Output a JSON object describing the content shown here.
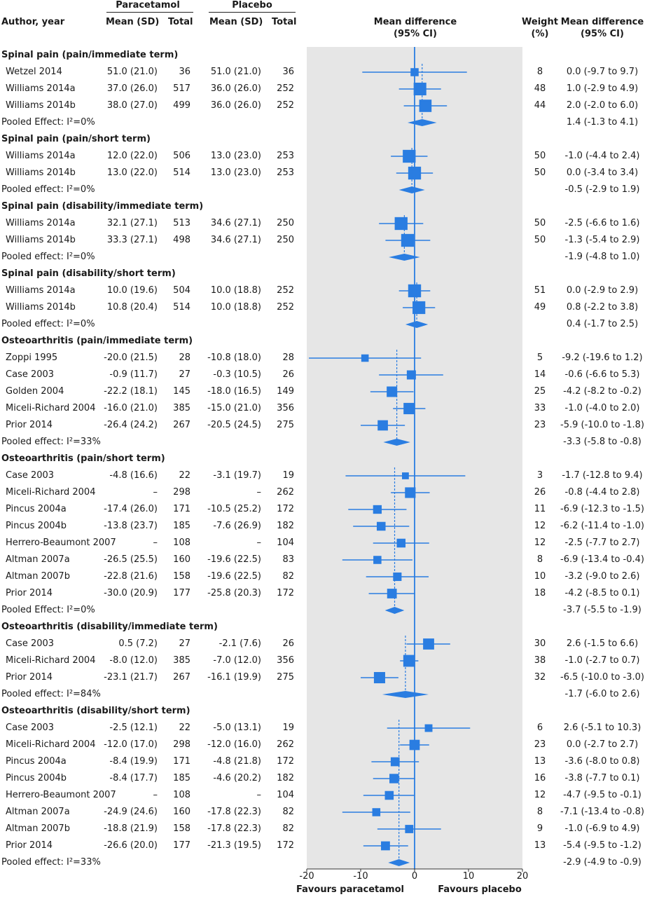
{
  "header": {
    "group1": "Paracetamol",
    "group2": "Placebo",
    "author": "Author, year",
    "mean_sd": "Mean (SD)",
    "total": "Total",
    "md_line1": "Mean difference",
    "md_line2": "(95% CI)",
    "weight_line1": "Weight",
    "weight_line2": "(%)",
    "md2_line1": "Mean difference",
    "md2_line2": "(95% CI)"
  },
  "axis": {
    "ticks": [
      "-20",
      "-10",
      "0",
      "10",
      "20"
    ],
    "left_label": "Favours paracetamol",
    "right_label": "Favours placebo"
  },
  "chart_data": {
    "type": "forest",
    "xlim": [
      -20,
      20
    ],
    "sections": [
      {
        "title": "Spinal pain (pain/immediate term)",
        "pooled_label": "Pooled Effect: I²=0%",
        "pooled": {
          "md": 1.4,
          "lo": -1.3,
          "hi": 4.1,
          "text": "1.4 (-1.3 to 4.1)"
        },
        "studies": [
          {
            "author": "Wetzel 2014",
            "p_mean": "51.0 (21.0)",
            "p_total": "36",
            "c_mean": "51.0 (21.0)",
            "c_total": "36",
            "md": 0.0,
            "lo": -9.7,
            "hi": 9.7,
            "weight": "8",
            "ci_text": "0.0 (-9.7 to 9.7)"
          },
          {
            "author": "Williams 2014a",
            "p_mean": "37.0 (26.0)",
            "p_total": "517",
            "c_mean": "36.0 (26.0)",
            "c_total": "252",
            "md": 1.0,
            "lo": -2.9,
            "hi": 4.9,
            "weight": "48",
            "ci_text": "1.0 (-2.9 to 4.9)"
          },
          {
            "author": "Williams 2014b",
            "p_mean": "38.0 (27.0)",
            "p_total": "499",
            "c_mean": "36.0 (26.0)",
            "c_total": "252",
            "md": 2.0,
            "lo": -2.0,
            "hi": 6.0,
            "weight": "44",
            "ci_text": "2.0 (-2.0 to 6.0)"
          }
        ]
      },
      {
        "title": "Spinal pain (pain/short term)",
        "pooled_label": "Pooled effect: I²=0%",
        "pooled": {
          "md": -0.5,
          "lo": -2.9,
          "hi": 1.9,
          "text": "-0.5 (-2.9 to 1.9)"
        },
        "studies": [
          {
            "author": "Williams 2014a",
            "p_mean": "12.0 (22.0)",
            "p_total": "506",
            "c_mean": "13.0 (23.0)",
            "c_total": "253",
            "md": -1.0,
            "lo": -4.4,
            "hi": 2.4,
            "weight": "50",
            "ci_text": "-1.0 (-4.4 to 2.4)"
          },
          {
            "author": "Williams 2014b",
            "p_mean": "13.0 (22.0)",
            "p_total": "514",
            "c_mean": "13.0 (23.0)",
            "c_total": "253",
            "md": 0.0,
            "lo": -3.4,
            "hi": 3.4,
            "weight": "50",
            "ci_text": "0.0 (-3.4 to 3.4)"
          }
        ]
      },
      {
        "title": "Spinal pain (disability/immediate term)",
        "pooled_label": "Pooled effect: I²=0%",
        "pooled": {
          "md": -1.9,
          "lo": -4.8,
          "hi": 1.0,
          "text": "-1.9 (-4.8 to 1.0)"
        },
        "studies": [
          {
            "author": "Williams 2014a",
            "p_mean": "32.1 (27.1)",
            "p_total": "513",
            "c_mean": "34.6 (27.1)",
            "c_total": "250",
            "md": -2.5,
            "lo": -6.6,
            "hi": 1.6,
            "weight": "50",
            "ci_text": "-2.5 (-6.6 to 1.6)"
          },
          {
            "author": "Williams 2014b",
            "p_mean": "33.3 (27.1)",
            "p_total": "498",
            "c_mean": "34.6 (27.1)",
            "c_total": "250",
            "md": -1.3,
            "lo": -5.4,
            "hi": 2.9,
            "weight": "50",
            "ci_text": "-1.3 (-5.4 to 2.9)"
          }
        ]
      },
      {
        "title": "Spinal pain (disability/short term)",
        "pooled_label": "Pooled effect: I²=0%",
        "pooled": {
          "md": 0.4,
          "lo": -1.7,
          "hi": 2.5,
          "text": "0.4 (-1.7 to 2.5)"
        },
        "studies": [
          {
            "author": "Williams 2014a",
            "p_mean": "10.0 (19.6)",
            "p_total": "504",
            "c_mean": "10.0 (18.8)",
            "c_total": "252",
            "md": 0.0,
            "lo": -2.9,
            "hi": 2.9,
            "weight": "51",
            "ci_text": "0.0 (-2.9 to 2.9)"
          },
          {
            "author": "Williams 2014b",
            "p_mean": "10.8 (20.4)",
            "p_total": "514",
            "c_mean": "10.0 (18.8)",
            "c_total": "252",
            "md": 0.8,
            "lo": -2.2,
            "hi": 3.8,
            "weight": "49",
            "ci_text": "0.8 (-2.2 to 3.8)"
          }
        ]
      },
      {
        "title": "Osteoarthritis (pain/immediate term)",
        "pooled_label": "Pooled effect: I²=33%",
        "pooled": {
          "md": -3.3,
          "lo": -5.8,
          "hi": -0.8,
          "text": "-3.3 (-5.8 to -0.8)"
        },
        "studies": [
          {
            "author": "Zoppi 1995",
            "p_mean": "-20.0 (21.5)",
            "p_total": "28",
            "c_mean": "-10.8 (18.0)",
            "c_total": "28",
            "md": -9.2,
            "lo": -19.6,
            "hi": 1.2,
            "weight": "5",
            "ci_text": "-9.2 (-19.6 to 1.2)"
          },
          {
            "author": "Case 2003",
            "p_mean": "-0.9 (11.7)",
            "p_total": "27",
            "c_mean": "-0.3 (10.5)",
            "c_total": "26",
            "md": -0.6,
            "lo": -6.6,
            "hi": 5.3,
            "weight": "14",
            "ci_text": "-0.6 (-6.6 to 5.3)"
          },
          {
            "author": "Golden 2004",
            "p_mean": "-22.2 (18.1)",
            "p_total": "145",
            "c_mean": "-18.0 (16.5)",
            "c_total": "149",
            "md": -4.2,
            "lo": -8.2,
            "hi": -0.2,
            "weight": "25",
            "ci_text": "-4.2 (-8.2 to -0.2)"
          },
          {
            "author": "Miceli-Richard 2004",
            "p_mean": "-16.0 (21.0)",
            "p_total": "385",
            "c_mean": "-15.0 (21.0)",
            "c_total": "356",
            "md": -1.0,
            "lo": -4.0,
            "hi": 2.0,
            "weight": "33",
            "ci_text": "-1.0 (-4.0 to 2.0)"
          },
          {
            "author": "Prior 2014",
            "p_mean": "-26.4 (24.2)",
            "p_total": "267",
            "c_mean": "-20.5 (24.5)",
            "c_total": "275",
            "md": -5.9,
            "lo": -10.0,
            "hi": -1.8,
            "weight": "23",
            "ci_text": "-5.9 (-10.0 to -1.8)"
          }
        ]
      },
      {
        "title": "Osteoarthritis (pain/short term)",
        "pooled_label": "Pooled Effect: I²=0%",
        "pooled": {
          "md": -3.7,
          "lo": -5.5,
          "hi": -1.9,
          "text": "-3.7 (-5.5 to -1.9)"
        },
        "studies": [
          {
            "author": "Case 2003",
            "p_mean": "-4.8 (16.6)",
            "p_total": "22",
            "c_mean": "-3.1 (19.7)",
            "c_total": "19",
            "md": -1.7,
            "lo": -12.8,
            "hi": 9.4,
            "weight": "3",
            "ci_text": "-1.7 (-12.8 to 9.4)"
          },
          {
            "author": "Miceli-Richard 2004",
            "p_mean": "–",
            "p_total": "298",
            "c_mean": "–",
            "c_total": "262",
            "md": -0.8,
            "lo": -4.4,
            "hi": 2.8,
            "weight": "26",
            "ci_text": "-0.8 (-4.4 to 2.8)"
          },
          {
            "author": "Pincus 2004a",
            "p_mean": "-17.4 (26.0)",
            "p_total": "171",
            "c_mean": "-10.5 (25.2)",
            "c_total": "172",
            "md": -6.9,
            "lo": -12.3,
            "hi": -1.5,
            "weight": "11",
            "ci_text": "-6.9 (-12.3 to -1.5)"
          },
          {
            "author": "Pincus 2004b",
            "p_mean": "-13.8 (23.7)",
            "p_total": "185",
            "c_mean": "-7.6 (26.9)",
            "c_total": "182",
            "md": -6.2,
            "lo": -11.4,
            "hi": -1.0,
            "weight": "12",
            "ci_text": "-6.2 (-11.4 to -1.0)"
          },
          {
            "author": "Herrero-Beaumont 2007",
            "p_mean": "–",
            "p_total": "108",
            "c_mean": "–",
            "c_total": "104",
            "md": -2.5,
            "lo": -7.7,
            "hi": 2.7,
            "weight": "12",
            "ci_text": "-2.5 (-7.7 to 2.7)"
          },
          {
            "author": "Altman 2007a",
            "p_mean": "-26.5 (25.5)",
            "p_total": "160",
            "c_mean": "-19.6 (22.5)",
            "c_total": "83",
            "md": -6.9,
            "lo": -13.4,
            "hi": -0.4,
            "weight": "8",
            "ci_text": "-6.9 (-13.4 to -0.4)"
          },
          {
            "author": "Altman 2007b",
            "p_mean": "-22.8 (21.6)",
            "p_total": "158",
            "c_mean": "-19.6 (22.5)",
            "c_total": "82",
            "md": -3.2,
            "lo": -9.0,
            "hi": 2.6,
            "weight": "10",
            "ci_text": "-3.2 (-9.0 to 2.6)"
          },
          {
            "author": "Prior 2014",
            "p_mean": "-30.0 (20.9)",
            "p_total": "177",
            "c_mean": "-25.8 (20.3)",
            "c_total": "172",
            "md": -4.2,
            "lo": -8.5,
            "hi": 0.1,
            "weight": "18",
            "ci_text": "-4.2 (-8.5 to 0.1)"
          }
        ]
      },
      {
        "title": "Osteoarthritis (disability/immediate term)",
        "pooled_label": "Pooled effect: I²=84%",
        "pooled": {
          "md": -1.7,
          "lo": -6.0,
          "hi": 2.6,
          "text": "-1.7 (-6.0 to 2.6)"
        },
        "studies": [
          {
            "author": "Case 2003",
            "p_mean": "0.5 (7.2)",
            "p_total": "27",
            "c_mean": "-2.1 (7.6)",
            "c_total": "26",
            "md": 2.6,
            "lo": -1.5,
            "hi": 6.6,
            "weight": "30",
            "ci_text": "2.6 (-1.5 to 6.6)"
          },
          {
            "author": "Miceli-Richard 2004",
            "p_mean": "-8.0 (12.0)",
            "p_total": "385",
            "c_mean": "-7.0 (12.0)",
            "c_total": "356",
            "md": -1.0,
            "lo": -2.7,
            "hi": 0.7,
            "weight": "38",
            "ci_text": "-1.0 (-2.7 to 0.7)"
          },
          {
            "author": "Prior 2014",
            "p_mean": "-23.1 (21.7)",
            "p_total": "267",
            "c_mean": "-16.1 (19.9)",
            "c_total": "275",
            "md": -6.5,
            "lo": -10.0,
            "hi": -3.0,
            "weight": "32",
            "ci_text": "-6.5 (-10.0 to -3.0)"
          }
        ]
      },
      {
        "title": "Osteoarthritis (disability/short term)",
        "pooled_label": "Pooled effect: I²=33%",
        "pooled": {
          "md": -2.9,
          "lo": -4.9,
          "hi": -0.9,
          "text": "-2.9 (-4.9 to -0.9)"
        },
        "studies": [
          {
            "author": "Case 2003",
            "p_mean": "-2.5 (12.1)",
            "p_total": "22",
            "c_mean": "-5.0 (13.1)",
            "c_total": "19",
            "md": 2.6,
            "lo": -5.1,
            "hi": 10.3,
            "weight": "6",
            "ci_text": "2.6 (-5.1 to 10.3)"
          },
          {
            "author": "Miceli-Richard 2004",
            "p_mean": "-12.0 (17.0)",
            "p_total": "298",
            "c_mean": "-12.0 (16.0)",
            "c_total": "262",
            "md": 0.0,
            "lo": -2.7,
            "hi": 2.7,
            "weight": "23",
            "ci_text": "0.0 (-2.7 to 2.7)"
          },
          {
            "author": "Pincus 2004a",
            "p_mean": "-8.4 (19.9)",
            "p_total": "171",
            "c_mean": "-4.8 (21.8)",
            "c_total": "172",
            "md": -3.6,
            "lo": -8.0,
            "hi": 0.8,
            "weight": "13",
            "ci_text": "-3.6 (-8.0 to 0.8)"
          },
          {
            "author": "Pincus 2004b",
            "p_mean": "-8.4 (17.7)",
            "p_total": "185",
            "c_mean": "-4.6 (20.2)",
            "c_total": "182",
            "md": -3.8,
            "lo": -7.7,
            "hi": 0.1,
            "weight": "16",
            "ci_text": "-3.8 (-7.7 to 0.1)"
          },
          {
            "author": "Herrero-Beaumont 2007",
            "p_mean": "–",
            "p_total": "108",
            "c_mean": "–",
            "c_total": "104",
            "md": -4.7,
            "lo": -9.5,
            "hi": -0.1,
            "weight": "12",
            "ci_text": "-4.7 (-9.5 to -0.1)"
          },
          {
            "author": "Altman 2007a",
            "p_mean": "-24.9 (24.6)",
            "p_total": "160",
            "c_mean": "-17.8 (22.3)",
            "c_total": "82",
            "md": -7.1,
            "lo": -13.4,
            "hi": -0.8,
            "weight": "8",
            "ci_text": "-7.1 (-13.4 to -0.8)"
          },
          {
            "author": "Altman 2007b",
            "p_mean": "-18.8 (21.9)",
            "p_total": "158",
            "c_mean": "-17.8 (22.3)",
            "c_total": "82",
            "md": -1.0,
            "lo": -6.9,
            "hi": 4.9,
            "weight": "9",
            "ci_text": "-1.0 (-6.9 to 4.9)"
          },
          {
            "author": "Prior 2014",
            "p_mean": "-26.6 (20.0)",
            "p_total": "177",
            "c_mean": "-21.3 (19.5)",
            "c_total": "172",
            "md": -5.4,
            "lo": -9.5,
            "hi": -1.2,
            "weight": "13",
            "ci_text": "-5.4 (-9.5 to -1.2)"
          }
        ]
      }
    ],
    "colors": {
      "marker": "#2a7de1",
      "panel": "#e6e6e6",
      "text": "#1a1a1a"
    }
  }
}
